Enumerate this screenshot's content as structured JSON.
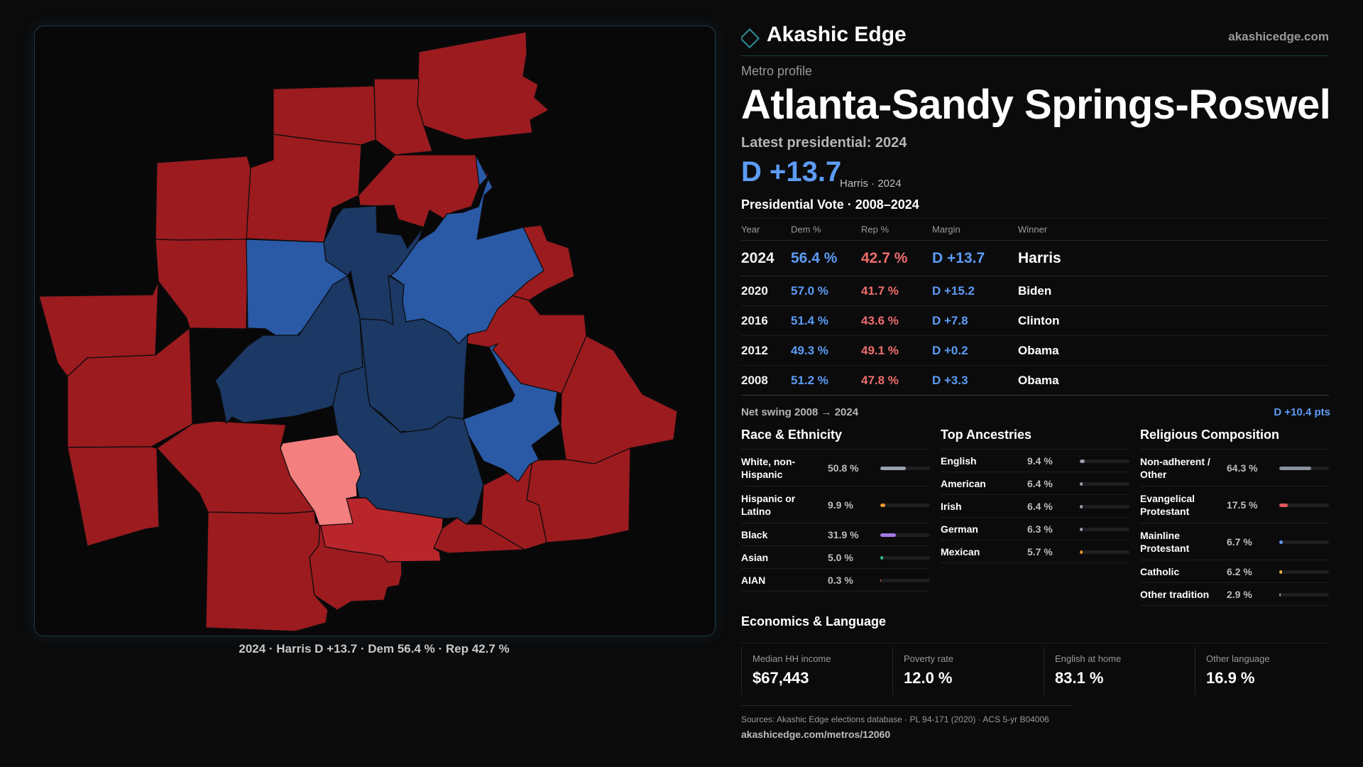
{
  "brand": {
    "name": "Akashic Edge",
    "url": "akashicedge.com"
  },
  "profile": {
    "eyebrow": "Metro profile",
    "title": "Atlanta-Sandy Springs-Roswell, GA",
    "latest_label": "Latest presidential: 2024",
    "headline_margin": "D +13.7",
    "headline_sub": "Harris · 2024"
  },
  "map": {
    "caption": "2024 · Harris D +13.7 · Dem 56.4 % · Rep 42.7 %",
    "colors": {
      "strong_rep": "#9b1b1f",
      "rep": "#b8262b",
      "lean_rep": "#f47f7f",
      "dem": "#2a5aa6",
      "strong_dem": "#1c3864"
    }
  },
  "vote_table": {
    "title": "Presidential Vote · 2008–2024",
    "headers": [
      "Year",
      "Dem %",
      "Rep %",
      "Margin",
      "Winner"
    ],
    "rows": [
      {
        "year": "2024",
        "dem": "56.4 %",
        "rep": "42.7 %",
        "margin": "D +13.7",
        "winner": "Harris"
      },
      {
        "year": "2020",
        "dem": "57.0 %",
        "rep": "41.7 %",
        "margin": "D +15.2",
        "winner": "Biden"
      },
      {
        "year": "2016",
        "dem": "51.4 %",
        "rep": "43.6 %",
        "margin": "D +7.8",
        "winner": "Clinton"
      },
      {
        "year": "2012",
        "dem": "49.3 %",
        "rep": "49.1 %",
        "margin": "D +0.2",
        "winner": "Obama"
      },
      {
        "year": "2008",
        "dem": "51.2 %",
        "rep": "47.8 %",
        "margin": "D +3.3",
        "winner": "Obama"
      }
    ],
    "swing_label": "Net swing 2008 → 2024",
    "swing_value": "D +10.4 pts"
  },
  "race": {
    "title": "Race & Ethnicity",
    "rows": [
      {
        "label": "White, non-Hispanic",
        "value": "50.8 %",
        "pct": 50.8,
        "color": "#9aa0ad"
      },
      {
        "label": "Hispanic or Latino",
        "value": "9.9 %",
        "pct": 9.9,
        "color": "#e89a2c"
      },
      {
        "label": "Black",
        "value": "31.9 %",
        "pct": 31.9,
        "color": "#a27be6"
      },
      {
        "label": "Asian",
        "value": "5.0 %",
        "pct": 5.0,
        "color": "#2fbf8c"
      },
      {
        "label": "AIAN",
        "value": "0.3 %",
        "pct": 0.3,
        "color": "#e0784a"
      }
    ]
  },
  "ancestry": {
    "title": "Top Ancestries",
    "rows": [
      {
        "label": "English",
        "value": "9.4 %",
        "pct": 9.4,
        "color": "#9aa0ad"
      },
      {
        "label": "American",
        "value": "6.4 %",
        "pct": 6.4,
        "color": "#9aa0ad"
      },
      {
        "label": "Irish",
        "value": "6.4 %",
        "pct": 6.4,
        "color": "#9aa0ad"
      },
      {
        "label": "German",
        "value": "6.3 %",
        "pct": 6.3,
        "color": "#9aa0ad"
      },
      {
        "label": "Mexican",
        "value": "5.7 %",
        "pct": 5.7,
        "color": "#e89a2c"
      }
    ]
  },
  "religion": {
    "title": "Religious Composition",
    "rows": [
      {
        "label": "Non-adherent / Other",
        "value": "64.3 %",
        "pct": 64.3,
        "color": "#8a909c"
      },
      {
        "label": "Evangelical Protestant",
        "value": "17.5 %",
        "pct": 17.5,
        "color": "#e3575b"
      },
      {
        "label": "Mainline Protestant",
        "value": "6.7 %",
        "pct": 6.7,
        "color": "#5c9cf5"
      },
      {
        "label": "Catholic",
        "value": "6.2 %",
        "pct": 6.2,
        "color": "#e8b63a"
      },
      {
        "label": "Other tradition",
        "value": "2.9 %",
        "pct": 2.9,
        "color": "#9aa0ad"
      }
    ]
  },
  "economics": {
    "title": "Economics & Language",
    "items": [
      {
        "label": "Median HH income",
        "value": "$67,443"
      },
      {
        "label": "Poverty rate",
        "value": "12.0 %"
      },
      {
        "label": "English at home",
        "value": "83.1 %"
      },
      {
        "label": "Other language",
        "value": "16.9 %"
      }
    ]
  },
  "footer": {
    "sources": "Sources: Akashic Edge elections database · PL 94-171 (2020) · ACS 5-yr B04006",
    "url": "akashicedge.com/metros/12060"
  }
}
